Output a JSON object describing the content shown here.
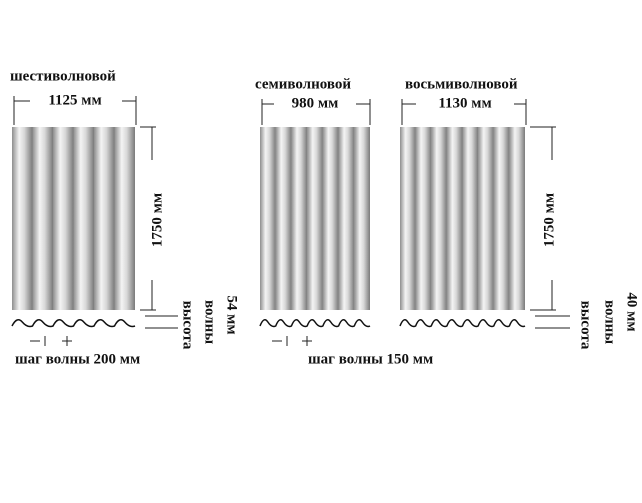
{
  "sheets": [
    {
      "name": "шестиволновой",
      "width": "1125 мм",
      "length": "1750 мм",
      "wave_height": [
        "высота",
        "волны",
        "54 мм"
      ],
      "wave_pitch": "шаг волны 200 мм"
    },
    {
      "name": "семиволновой",
      "width": "980 мм"
    },
    {
      "name": "восьмиволновой",
      "width": "1130 мм",
      "length": "1750 мм",
      "wave_height": [
        "высота",
        "волны",
        "40 мм"
      ]
    }
  ],
  "shared_wave_pitch": "шаг волны 150 мм"
}
